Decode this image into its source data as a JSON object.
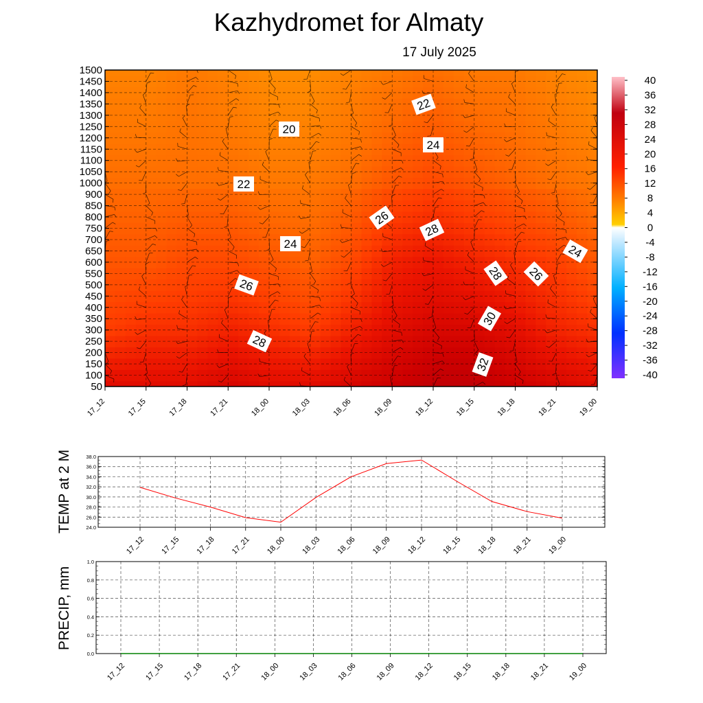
{
  "header": {
    "title": "Kazhydromet  for Almaty",
    "date": "17 July 2025"
  },
  "chart_data": [
    {
      "type": "heatmap",
      "variable": "cross-section temperature with wind barbs",
      "x_categories": [
        "17_12",
        "17_15",
        "17_18",
        "17_21",
        "18_00",
        "18_03",
        "18_06",
        "18_09",
        "18_12",
        "18_15",
        "18_18",
        "18_21",
        "19_00"
      ],
      "y_levels": [
        50,
        100,
        150,
        200,
        250,
        300,
        350,
        400,
        450,
        500,
        550,
        600,
        650,
        700,
        750,
        800,
        850,
        900,
        1000,
        1050,
        1100,
        1150,
        1200,
        1250,
        1300,
        1350,
        1400,
        1450,
        1500
      ],
      "colorbar_ticks": [
        "40",
        "36",
        "32",
        "28",
        "24",
        "20",
        "16",
        "12",
        "8",
        "4",
        "0",
        "-4",
        "-8",
        "-12",
        "-16",
        "-20",
        "-24",
        "-28",
        "-32",
        "-36",
        "-40"
      ],
      "colorbar_range": [
        -40,
        40
      ],
      "contour_labels": [
        "20",
        "22",
        "22",
        "24",
        "24",
        "24",
        "26",
        "26",
        "26",
        "28",
        "28",
        "28",
        "30",
        "32",
        "24"
      ],
      "temperature_grid_approx": {
        "levels_used": [
          50,
          300,
          600,
          1000,
          1500
        ],
        "values": [
          [
            30,
            26,
            24,
            22,
            20
          ],
          [
            30,
            27,
            24,
            22,
            20
          ],
          [
            30,
            27,
            25,
            22,
            21
          ],
          [
            31,
            28,
            25,
            22,
            20
          ],
          [
            30,
            27,
            24,
            21,
            19
          ],
          [
            30,
            26,
            23,
            21,
            19
          ],
          [
            31,
            28,
            25,
            22,
            20
          ],
          [
            32,
            30,
            28,
            24,
            21
          ],
          [
            33,
            31,
            29,
            25,
            22
          ],
          [
            33,
            31,
            28,
            24,
            21
          ],
          [
            32,
            30,
            27,
            23,
            21
          ],
          [
            31,
            28,
            26,
            22,
            20
          ],
          [
            30,
            27,
            24,
            21,
            19
          ]
        ]
      },
      "colors": {
        "warm": "#e00000",
        "mid": "#ff6a00",
        "cool": "#ffb000",
        "zero": "#ffffff",
        "cold": "#7f00ff"
      }
    },
    {
      "type": "line",
      "ylabel": "TEMP at 2 M",
      "x": [
        "17_12",
        "17_15",
        "17_18",
        "17_21",
        "18_00",
        "18_03",
        "18_06",
        "18_09",
        "18_12",
        "18_15",
        "18_18",
        "18_21",
        "19_00"
      ],
      "y": [
        31.9,
        29.8,
        28.0,
        25.9,
        25.0,
        29.9,
        34.0,
        36.6,
        37.3,
        33.1,
        29.1,
        27.1,
        25.8
      ],
      "ylim": [
        24.0,
        38.0
      ],
      "yticks": [
        "24.0",
        "26.0",
        "28.0",
        "30.0",
        "32.0",
        "34.0",
        "36.0",
        "38.0"
      ],
      "color": "#ff0000"
    },
    {
      "type": "line",
      "ylabel": "PRECIP, mm",
      "x": [
        "17_12",
        "17_15",
        "17_18",
        "17_21",
        "18_00",
        "18_03",
        "18_06",
        "18_09",
        "18_12",
        "18_15",
        "18_18",
        "18_21",
        "19_00"
      ],
      "y": [
        0,
        0,
        0,
        0,
        0,
        0,
        0,
        0,
        0,
        0,
        0,
        0,
        0
      ],
      "ylim": [
        0.0,
        1.0
      ],
      "yticks": [
        "0.0",
        "0.2",
        "0.4",
        "0.6",
        "0.8",
        "1.0"
      ],
      "color": "#008000"
    }
  ]
}
